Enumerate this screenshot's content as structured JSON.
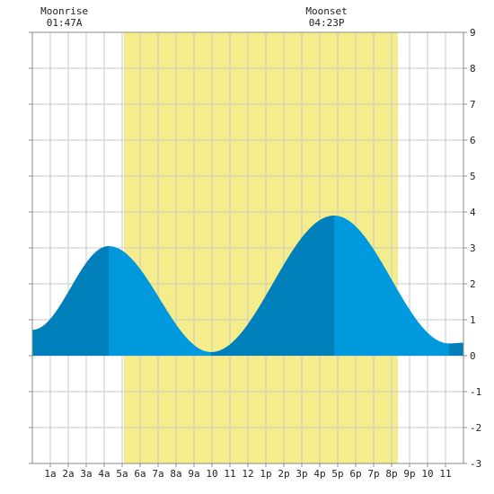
{
  "chart_data": {
    "type": "area",
    "title": "",
    "xlabel": "",
    "ylabel": "",
    "x_range": [
      0,
      24
    ],
    "ylim": [
      -3,
      9
    ],
    "y_ticks": [
      -3,
      -2,
      -1,
      0,
      1,
      2,
      3,
      4,
      5,
      6,
      7,
      8,
      9
    ],
    "x_tick_hours": [
      1,
      2,
      3,
      4,
      5,
      6,
      7,
      8,
      9,
      10,
      11,
      12,
      13,
      14,
      15,
      16,
      17,
      18,
      19,
      20,
      21,
      22,
      23
    ],
    "x_tick_labels": [
      "1a",
      "2a",
      "3a",
      "4a",
      "5a",
      "6a",
      "7a",
      "8a",
      "9a",
      "10",
      "11",
      "12",
      "1p",
      "2p",
      "3p",
      "4p",
      "5p",
      "6p",
      "7p",
      "8p",
      "9p",
      "10",
      "11"
    ],
    "grid": true,
    "daylight": {
      "start": 5.1,
      "end": 20.35
    },
    "tide_extremes": [
      {
        "hour": 0.0,
        "height": 0.72
      },
      {
        "hour": 4.25,
        "height": 3.05
      },
      {
        "hour": 9.95,
        "height": 0.1
      },
      {
        "hour": 16.8,
        "height": 3.9
      },
      {
        "hour": 23.2,
        "height": 0.34
      },
      {
        "hour": 24.0,
        "height": 0.36
      }
    ],
    "moon_events": [
      {
        "name": "Moonrise",
        "time": "01:47A",
        "hour": 1.78
      },
      {
        "name": "Moonset",
        "time": "04:23P",
        "hour": 16.38
      }
    ],
    "colors": {
      "daylight": "#f5ec8c",
      "rising": "#0080bb",
      "falling": "#0099dd",
      "grid": "#c8c8c8",
      "axis": "#888888",
      "background": "#ffffff"
    }
  }
}
